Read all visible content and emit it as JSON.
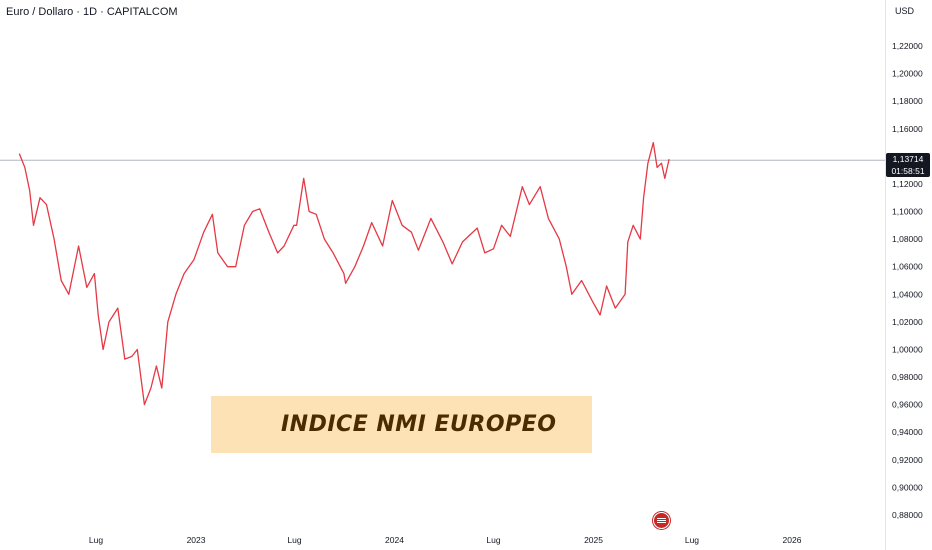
{
  "header": {
    "title": "Euro / Dollaro · 1D · CAPITALCOM"
  },
  "price_axis": {
    "currency": "USD",
    "current_price": "1,13714",
    "countdown": "01:58:51"
  },
  "banner": {
    "text": "INDICE NMI EUROPEO"
  },
  "colors": {
    "line": "#e53945",
    "price_line": "#b2b5be",
    "label_bg": "#131722",
    "banner_bg": "#fde2b6"
  },
  "icons": {
    "flag": "us-flag-event-icon"
  },
  "chart_data": {
    "type": "line",
    "title": "Euro / Dollaro · 1D · CAPITALCOM",
    "xlabel": "",
    "ylabel": "",
    "ylim": [
      0.87,
      1.23
    ],
    "grid": false,
    "current_value": 1.13714,
    "y_ticks": [
      {
        "value": 1.22,
        "label": "1,22000"
      },
      {
        "value": 1.2,
        "label": "1,20000"
      },
      {
        "value": 1.18,
        "label": "1,18000"
      },
      {
        "value": 1.16,
        "label": "1,16000"
      },
      {
        "value": 1.12,
        "label": "1,12000"
      },
      {
        "value": 1.1,
        "label": "1,10000"
      },
      {
        "value": 1.08,
        "label": "1,08000"
      },
      {
        "value": 1.06,
        "label": "1,06000"
      },
      {
        "value": 1.04,
        "label": "1,04000"
      },
      {
        "value": 1.02,
        "label": "1,02000"
      },
      {
        "value": 1.0,
        "label": "1,00000"
      },
      {
        "value": 0.98,
        "label": "0,98000"
      },
      {
        "value": 0.96,
        "label": "0,96000"
      },
      {
        "value": 0.94,
        "label": "0,94000"
      },
      {
        "value": 0.92,
        "label": "0,92000"
      },
      {
        "value": 0.9,
        "label": "0,90000"
      },
      {
        "value": 0.88,
        "label": "0,88000"
      }
    ],
    "x_ticks": [
      {
        "date": "2022-07-01",
        "label": "Lug"
      },
      {
        "date": "2023-01-01",
        "label": "2023"
      },
      {
        "date": "2023-07-01",
        "label": "Lug"
      },
      {
        "date": "2024-01-01",
        "label": "2024"
      },
      {
        "date": "2024-07-01",
        "label": "Lug"
      },
      {
        "date": "2025-01-01",
        "label": "2025"
      },
      {
        "date": "2025-07-01",
        "label": "Lug"
      },
      {
        "date": "2026-01-01",
        "label": "2026"
      }
    ],
    "series": [
      {
        "points": [
          [
            "2022-02-10",
            1.142
          ],
          [
            "2022-02-20",
            1.132
          ],
          [
            "2022-03-01",
            1.115
          ],
          [
            "2022-03-08",
            1.09
          ],
          [
            "2022-03-20",
            1.11
          ],
          [
            "2022-04-01",
            1.105
          ],
          [
            "2022-04-15",
            1.08
          ],
          [
            "2022-04-28",
            1.05
          ],
          [
            "2022-05-12",
            1.04
          ],
          [
            "2022-05-30",
            1.075
          ],
          [
            "2022-06-14",
            1.045
          ],
          [
            "2022-06-28",
            1.055
          ],
          [
            "2022-07-05",
            1.025
          ],
          [
            "2022-07-14",
            1.0
          ],
          [
            "2022-07-25",
            1.02
          ],
          [
            "2022-08-10",
            1.03
          ],
          [
            "2022-08-23",
            0.993
          ],
          [
            "2022-09-05",
            0.995
          ],
          [
            "2022-09-15",
            1.0
          ],
          [
            "2022-09-28",
            0.96
          ],
          [
            "2022-10-10",
            0.972
          ],
          [
            "2022-10-20",
            0.988
          ],
          [
            "2022-10-30",
            0.972
          ],
          [
            "2022-11-10",
            1.02
          ],
          [
            "2022-11-25",
            1.04
          ],
          [
            "2022-12-10",
            1.055
          ],
          [
            "2022-12-28",
            1.065
          ],
          [
            "2023-01-15",
            1.085
          ],
          [
            "2023-01-31",
            1.098
          ],
          [
            "2023-02-10",
            1.07
          ],
          [
            "2023-02-28",
            1.06
          ],
          [
            "2023-03-15",
            1.06
          ],
          [
            "2023-03-31",
            1.09
          ],
          [
            "2023-04-15",
            1.1
          ],
          [
            "2023-04-28",
            1.102
          ],
          [
            "2023-05-15",
            1.085
          ],
          [
            "2023-05-31",
            1.07
          ],
          [
            "2023-06-12",
            1.075
          ],
          [
            "2023-06-30",
            1.09
          ],
          [
            "2023-07-05",
            1.09
          ],
          [
            "2023-07-18",
            1.124
          ],
          [
            "2023-07-28",
            1.1
          ],
          [
            "2023-08-10",
            1.098
          ],
          [
            "2023-08-25",
            1.08
          ],
          [
            "2023-09-10",
            1.07
          ],
          [
            "2023-09-30",
            1.055
          ],
          [
            "2023-10-03",
            1.048
          ],
          [
            "2023-10-20",
            1.06
          ],
          [
            "2023-11-05",
            1.075
          ],
          [
            "2023-11-20",
            1.092
          ],
          [
            "2023-12-10",
            1.075
          ],
          [
            "2023-12-28",
            1.108
          ],
          [
            "2024-01-15",
            1.09
          ],
          [
            "2024-02-01",
            1.085
          ],
          [
            "2024-02-14",
            1.072
          ],
          [
            "2024-03-08",
            1.095
          ],
          [
            "2024-03-30",
            1.078
          ],
          [
            "2024-04-16",
            1.062
          ],
          [
            "2024-05-05",
            1.078
          ],
          [
            "2024-06-01",
            1.088
          ],
          [
            "2024-06-15",
            1.07
          ],
          [
            "2024-07-01",
            1.073
          ],
          [
            "2024-07-16",
            1.09
          ],
          [
            "2024-08-01",
            1.082
          ],
          [
            "2024-08-23",
            1.118
          ],
          [
            "2024-09-05",
            1.105
          ],
          [
            "2024-09-25",
            1.118
          ],
          [
            "2024-10-10",
            1.095
          ],
          [
            "2024-10-30",
            1.08
          ],
          [
            "2024-11-12",
            1.06
          ],
          [
            "2024-11-22",
            1.04
          ],
          [
            "2024-12-10",
            1.05
          ],
          [
            "2024-12-30",
            1.035
          ],
          [
            "2025-01-13",
            1.025
          ],
          [
            "2025-01-25",
            1.046
          ],
          [
            "2025-02-10",
            1.03
          ],
          [
            "2025-02-28",
            1.04
          ],
          [
            "2025-03-05",
            1.078
          ],
          [
            "2025-03-15",
            1.09
          ],
          [
            "2025-03-28",
            1.08
          ],
          [
            "2025-04-03",
            1.11
          ],
          [
            "2025-04-11",
            1.135
          ],
          [
            "2025-04-21",
            1.15
          ],
          [
            "2025-04-28",
            1.132
          ],
          [
            "2025-05-06",
            1.135
          ],
          [
            "2025-05-12",
            1.124
          ],
          [
            "2025-05-20",
            1.138
          ]
        ]
      }
    ]
  }
}
